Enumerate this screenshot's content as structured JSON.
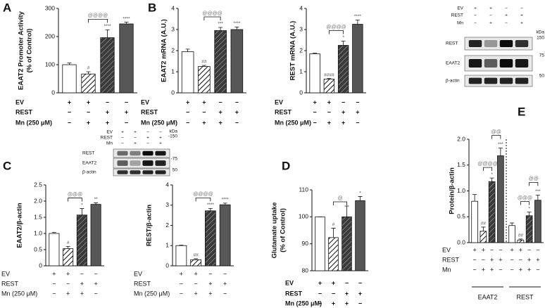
{
  "chart_data": [
    {
      "type": "bar",
      "panel": "A",
      "ylabel": [
        "EAAT2 Promoter Activity",
        "(% of Control)"
      ],
      "categories": [
        null,
        null,
        null,
        null
      ],
      "values": [
        100,
        67,
        196,
        245
      ],
      "errors": [
        6,
        8,
        28,
        6
      ],
      "annotations": [
        null,
        "#",
        "****",
        "****"
      ],
      "bracket": "@@@@",
      "fills": [
        "#ffffff",
        "hatch-light",
        "hatch-dark",
        "#575757"
      ],
      "ylim": [
        0,
        300
      ],
      "yticks": [
        0,
        100,
        200,
        300
      ],
      "conditions": [
        {
          "label": "EV",
          "signs": [
            "+",
            "+",
            "−",
            "−"
          ]
        },
        {
          "label": "REST",
          "signs": [
            "−",
            "−",
            "+",
            "+"
          ]
        },
        {
          "label": "Mn (250 μM)",
          "signs": [
            "−",
            "+",
            "+",
            "−"
          ]
        }
      ]
    },
    {
      "type": "bar",
      "panel": "B",
      "ylabel": [
        "EAAT2 mRNA (A.U.)"
      ],
      "categories": [
        null,
        null,
        null,
        null
      ],
      "values": [
        1.95,
        1.25,
        2.95,
        3.0
      ],
      "errors": [
        0.12,
        0.05,
        0.15,
        0.12
      ],
      "annotations": [
        null,
        "##",
        "***",
        "****"
      ],
      "bracket": "@@@@",
      "fills": [
        "#ffffff",
        "hatch-light",
        "hatch-dark",
        "#575757"
      ],
      "ylim": [
        0,
        4
      ],
      "yticks": [
        0,
        1,
        2,
        3,
        4
      ],
      "conditions": [
        {
          "label": "EV",
          "signs": [
            "+",
            "+",
            "−",
            "−"
          ]
        },
        {
          "label": "REST",
          "signs": [
            "−",
            "−",
            "+",
            "+"
          ]
        },
        {
          "label": "Mn (250 μM)",
          "signs": [
            "−",
            "+",
            "+",
            "−"
          ]
        }
      ]
    },
    {
      "type": "bar",
      "ylabel": [
        "REST mRNA (A.U.)"
      ],
      "categories": [
        null,
        null,
        null,
        null
      ],
      "values": [
        1.85,
        0.65,
        2.25,
        3.25
      ],
      "errors": [
        0.03,
        0.03,
        0.2,
        0.2
      ],
      "annotations": [
        null,
        "####",
        "*",
        "****"
      ],
      "bracket": "@@@@",
      "fills": [
        "#ffffff",
        "hatch-light",
        "hatch-dark",
        "#575757"
      ],
      "ylim": [
        0,
        4
      ],
      "yticks": [
        0,
        1,
        2,
        3,
        4
      ],
      "conditions": [
        {
          "label": "EV",
          "signs": [
            "+",
            "+",
            "−",
            "−"
          ]
        },
        {
          "label": "REST",
          "signs": [
            "−",
            "−",
            "+",
            "+"
          ]
        },
        {
          "label": "Mn (250 μM)",
          "signs": [
            "−",
            "+",
            "+",
            "−"
          ]
        }
      ]
    },
    {
      "type": "bar",
      "panel": "C",
      "ylabel": [
        "EAAT2/β-actin"
      ],
      "categories": [
        null,
        null,
        null,
        null
      ],
      "values": [
        1.0,
        0.53,
        1.57,
        1.9
      ],
      "errors": [
        0.03,
        0.07,
        0.2,
        0.05
      ],
      "annotations": [
        null,
        "#",
        "*",
        "**"
      ],
      "bracket": "@@@",
      "fills": [
        "#ffffff",
        "hatch-light",
        "hatch-dark",
        "#575757"
      ],
      "ylim": [
        0,
        2.5
      ],
      "yticks": [
        0,
        0.5,
        {
          "value": 1,
          "label": "1.0"
        },
        1.5,
        {
          "value": 2,
          "label": "2.0"
        },
        2.5
      ],
      "conditions": [
        {
          "label": "EV",
          "signs": [
            "+",
            "+",
            "−",
            "−"
          ]
        },
        {
          "label": "REST",
          "signs": [
            "−",
            "−",
            "+",
            "+"
          ]
        },
        {
          "label": "Mn (250 μM)",
          "signs": [
            "−",
            "+",
            "+",
            "−"
          ]
        }
      ]
    },
    {
      "type": "bar",
      "ylabel": [
        "REST/β-actin"
      ],
      "categories": [
        null,
        null,
        null,
        null
      ],
      "values": [
        1.0,
        0.3,
        2.72,
        3.02
      ],
      "errors": [
        0.02,
        0.05,
        0.12,
        0.08
      ],
      "annotations": [
        null,
        "##",
        "****",
        "****"
      ],
      "bracket": "@@@@",
      "fills": [
        "#ffffff",
        "hatch-light",
        "hatch-dark",
        "#575757"
      ],
      "ylim": [
        0,
        4
      ],
      "yticks": [
        0,
        1,
        2,
        3,
        4
      ],
      "conditions": [
        {
          "label": "EV",
          "signs": [
            "+",
            "+",
            "−",
            "−"
          ]
        },
        {
          "label": "REST",
          "signs": [
            "−",
            "−",
            "+",
            "+"
          ]
        },
        {
          "label": "Mn (250 μM)",
          "signs": [
            "−",
            "+",
            "+",
            "−"
          ]
        }
      ]
    },
    {
      "type": "bar",
      "panel": "D",
      "ylabel": [
        "Glutamate uptake",
        "(% of Control)"
      ],
      "categories": [
        null,
        null,
        null,
        null
      ],
      "values": [
        100,
        92.3,
        100,
        106
      ],
      "errors": [
        0,
        3.5,
        4,
        1.5
      ],
      "annotations": [
        null,
        "#",
        null,
        "*"
      ],
      "bracket": "@",
      "fills": [
        "#ffffff",
        "hatch-light",
        "hatch-dark",
        "#575757"
      ],
      "ylim": [
        80,
        110
      ],
      "yticks": [
        80,
        90,
        100,
        110
      ],
      "conditions": [
        {
          "label": "EV",
          "signs": [
            "+",
            "+",
            "−",
            "−"
          ]
        },
        {
          "label": "REST",
          "signs": [
            "−",
            "−",
            "+",
            "+"
          ]
        },
        {
          "label": "Mn (250 μM)",
          "signs": [
            "−",
            "+",
            "+",
            "−"
          ]
        }
      ]
    },
    {
      "type": "bar",
      "panel": "E",
      "ylabel": [
        "Protein/β-actin"
      ],
      "series": [
        {
          "name": "EAAT2",
          "values": [
            0.8,
            0.22,
            1.18,
            1.68
          ],
          "errors": [
            0.13,
            0.08,
            0.07,
            0.15
          ],
          "annotations": [
            null,
            "##",
            "*",
            "***"
          ],
          "brackets": [
            "@@@@",
            "@@"
          ]
        },
        {
          "name": "REST",
          "values": [
            0.33,
            0.05,
            0.52,
            0.82
          ],
          "errors": [
            0.05,
            0.02,
            0.07,
            0.1
          ],
          "annotations": [
            null,
            "##",
            "*",
            "***"
          ],
          "brackets": [
            "@@@",
            "@@"
          ]
        }
      ],
      "fills": [
        "#ffffff",
        "hatch-light",
        "hatch-dark",
        "#575757"
      ],
      "ylim": [
        0,
        2
      ],
      "yticks": [
        {
          "value": 0,
          "label": "0.0"
        },
        0.5,
        {
          "value": 1,
          "label": "1.0"
        },
        1.5,
        {
          "value": 2,
          "label": "2.0"
        }
      ],
      "conditions": [
        {
          "label": "EV",
          "signs": [
            "+",
            "+",
            "−",
            "−",
            "+",
            "+",
            "−",
            "−"
          ]
        },
        {
          "label": "REST",
          "signs": [
            "−",
            "−",
            "+",
            "+",
            "−",
            "−",
            "+",
            "+"
          ]
        },
        {
          "label": "Mn",
          "signs": [
            "−",
            "+",
            "+",
            "−",
            "−",
            "+",
            "+",
            "−"
          ]
        }
      ]
    }
  ],
  "blots": [
    {
      "header": [
        {
          "label": "EV",
          "signs": [
            "+",
            "+",
            "−",
            "−"
          ]
        },
        {
          "label": "REST",
          "signs": [
            "−",
            "−",
            "+",
            "+"
          ]
        },
        {
          "label": "Mn",
          "signs": [
            "−",
            "+",
            "−",
            "+"
          ]
        }
      ],
      "proteins": [
        "REST",
        "EAAT2",
        "β-actin"
      ],
      "markers": [
        "kDa",
        "-150",
        "-75",
        "50"
      ]
    },
    {
      "header": [
        {
          "label": "EV",
          "signs": [
            "+",
            "+",
            "−",
            "−"
          ]
        },
        {
          "label": "REST",
          "signs": [
            "−",
            "−",
            "+",
            "+"
          ]
        },
        {
          "label": "Mn",
          "signs": [
            "−",
            "+",
            "−",
            "+"
          ]
        }
      ],
      "proteins": [
        "REST",
        "EAAT2",
        "β-actin"
      ],
      "markers": [
        "kDa",
        "150",
        "75",
        "50"
      ]
    }
  ]
}
